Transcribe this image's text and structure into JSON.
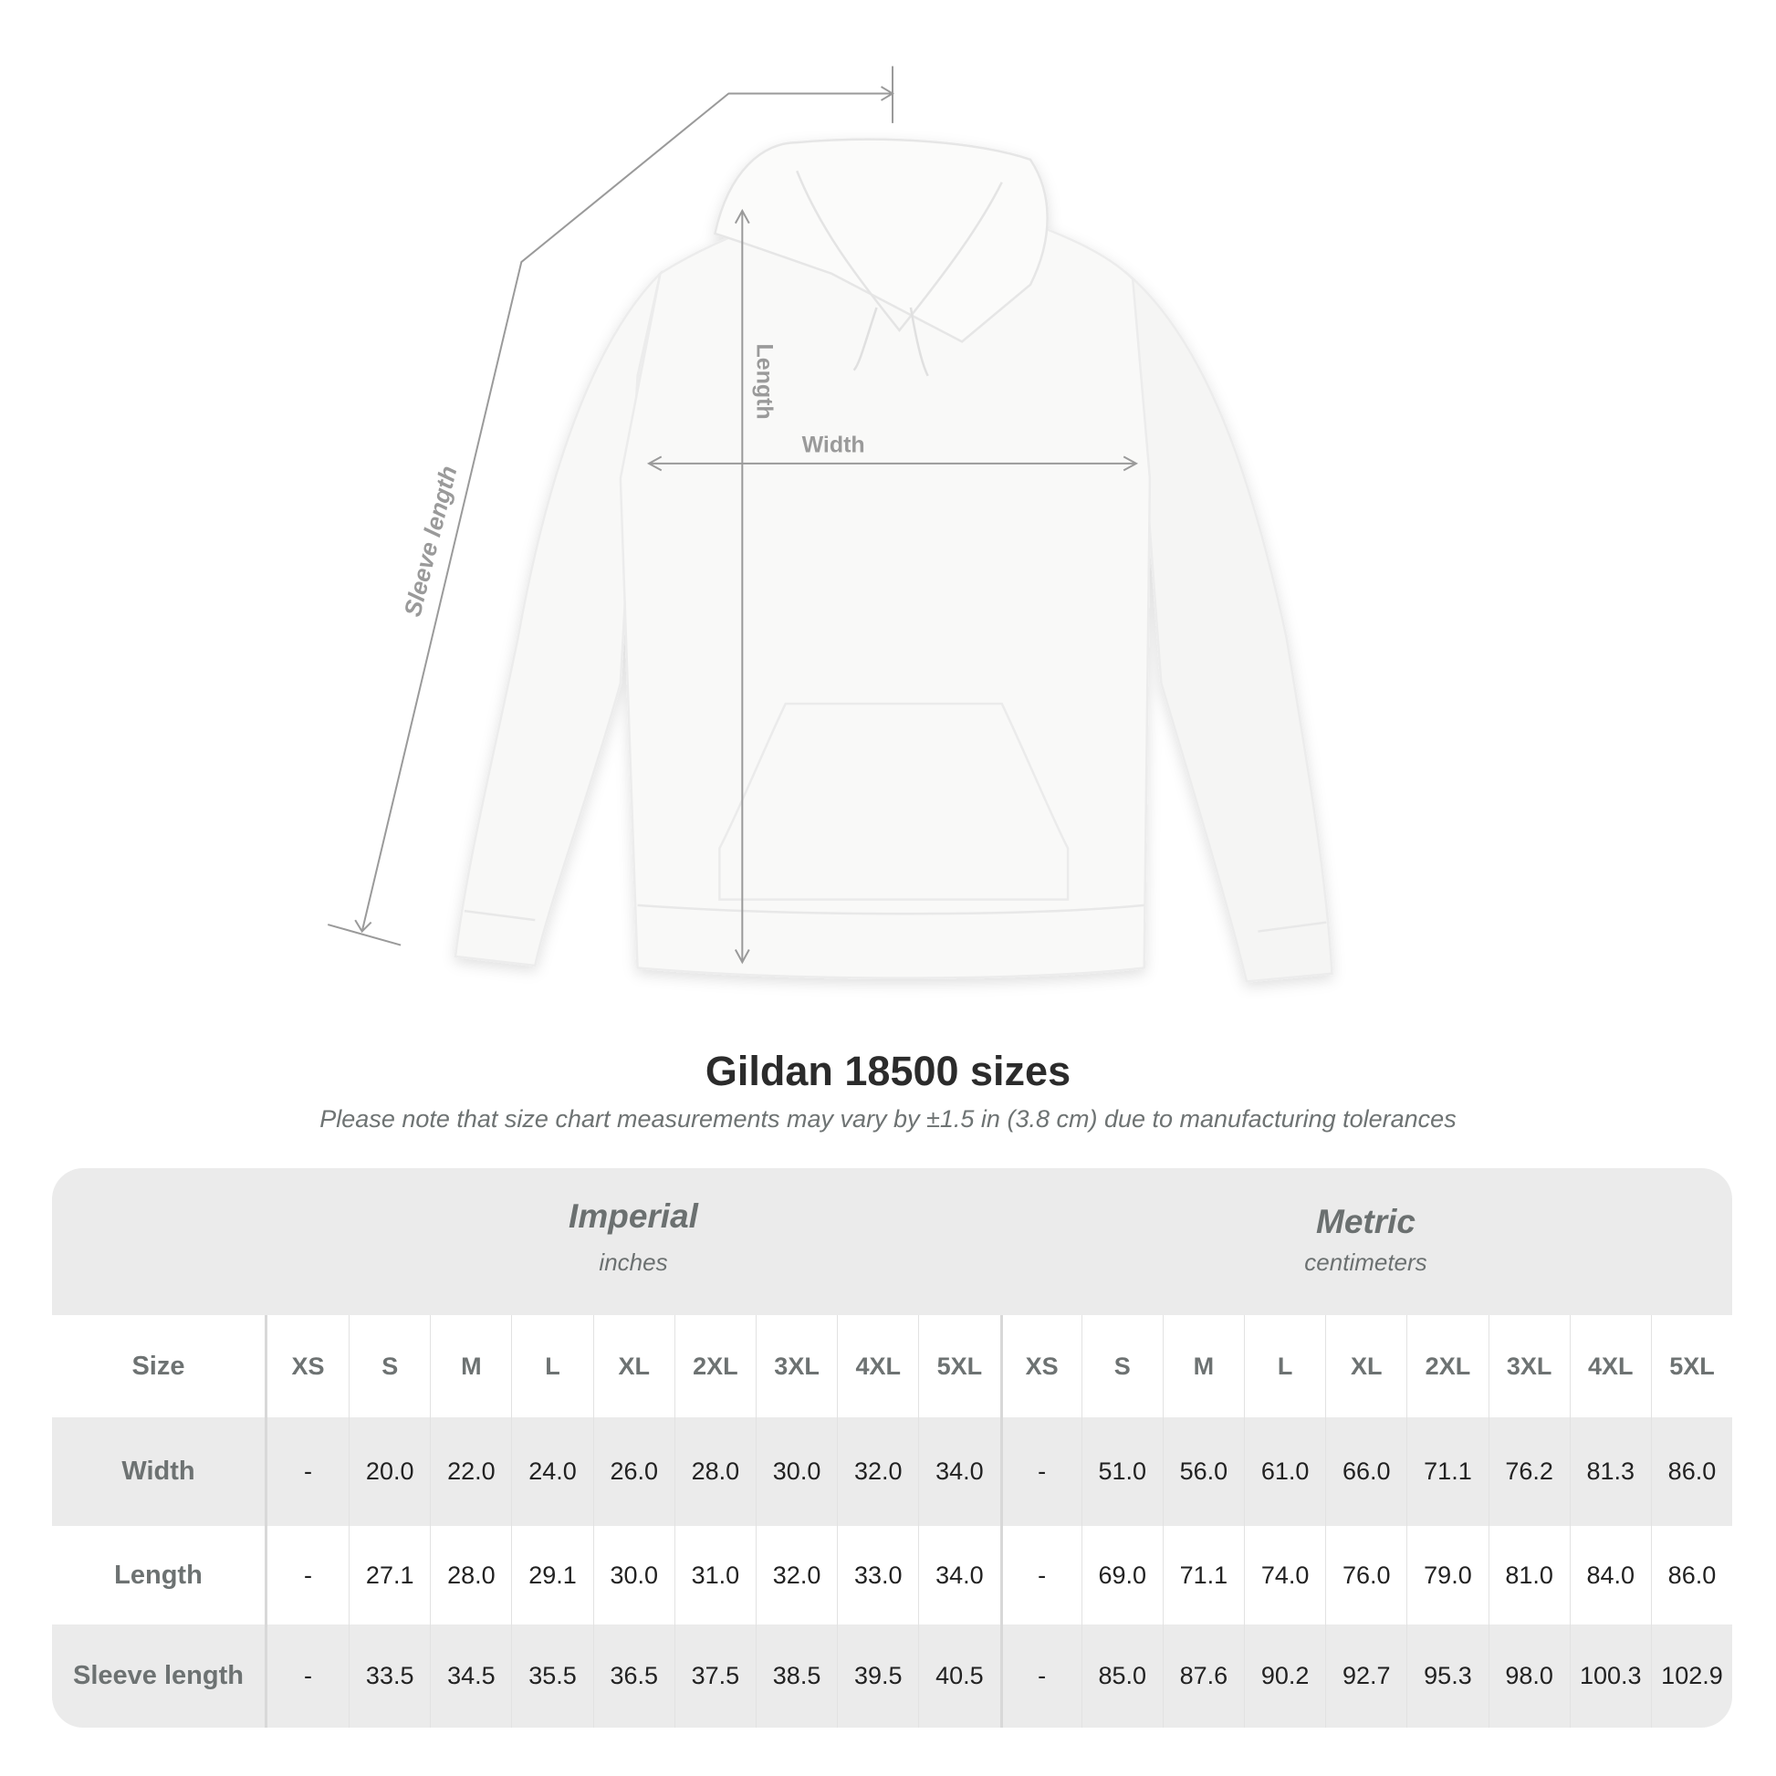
{
  "diagram": {
    "labels": {
      "sleeve": "Sleeve length",
      "length": "Length",
      "width": "Width"
    }
  },
  "title": "Gildan 18500 sizes",
  "subtitle": "Please note that size chart measurements may vary by ±1.5 in (3.8 cm) due to manufacturing tolerances",
  "table": {
    "imperial": {
      "name": "Imperial",
      "unit": "inches"
    },
    "metric": {
      "name": "Metric",
      "unit": "centimeters"
    },
    "size_label": "Size",
    "sizes": [
      "XS",
      "S",
      "M",
      "L",
      "XL",
      "2XL",
      "3XL",
      "4XL",
      "5XL",
      "XS",
      "S",
      "M",
      "L",
      "XL",
      "2XL",
      "3XL",
      "4XL",
      "5XL"
    ],
    "rows": [
      {
        "label": "Width",
        "values": [
          "-",
          "20.0",
          "22.0",
          "24.0",
          "26.0",
          "28.0",
          "30.0",
          "32.0",
          "34.0",
          "-",
          "51.0",
          "56.0",
          "61.0",
          "66.0",
          "71.1",
          "76.2",
          "81.3",
          "86.0"
        ]
      },
      {
        "label": "Length",
        "values": [
          "-",
          "27.1",
          "28.0",
          "29.1",
          "30.0",
          "31.0",
          "32.0",
          "33.0",
          "34.0",
          "-",
          "69.0",
          "71.1",
          "74.0",
          "76.0",
          "79.0",
          "81.0",
          "84.0",
          "86.0"
        ]
      },
      {
        "label": "Sleeve length",
        "values": [
          "-",
          "33.5",
          "34.5",
          "35.5",
          "36.5",
          "37.5",
          "38.5",
          "39.5",
          "40.5",
          "-",
          "85.0",
          "87.6",
          "90.2",
          "92.7",
          "95.3",
          "98.0",
          "100.3",
          "102.9"
        ]
      }
    ]
  },
  "colors": {
    "band": "#ebebeb",
    "header_text": "#6b7070",
    "measure_line": "#9a9a9a"
  }
}
